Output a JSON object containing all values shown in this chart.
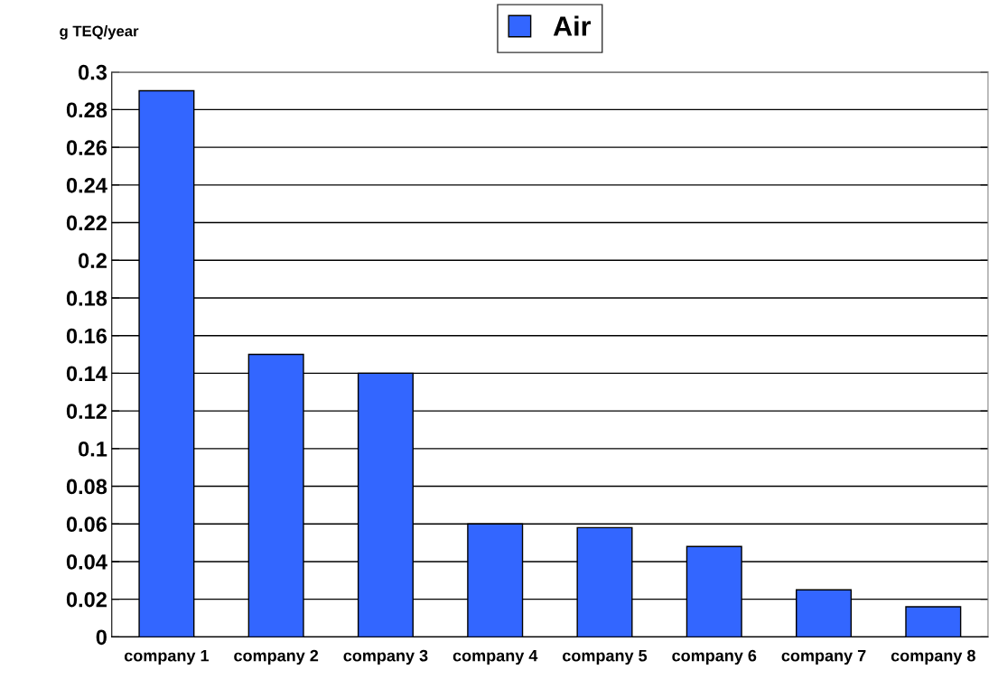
{
  "chart_data": {
    "type": "bar",
    "ylabel": "g TEQ/year",
    "categories": [
      "company 1",
      "company 2",
      "company 3",
      "company 4",
      "company 5",
      "company 6",
      "company 7",
      "company 8"
    ],
    "series": [
      {
        "name": "Air",
        "color": "#3366ff",
        "values": [
          0.29,
          0.15,
          0.14,
          0.06,
          0.058,
          0.048,
          0.025,
          0.016
        ]
      }
    ],
    "ylim": [
      0,
      0.3
    ],
    "yticks": [
      0,
      0.02,
      0.04,
      0.06,
      0.08,
      0.1,
      0.12,
      0.14,
      0.16,
      0.18,
      0.2,
      0.22,
      0.24,
      0.26,
      0.28,
      0.3
    ],
    "grid": "y",
    "legend": "top"
  }
}
